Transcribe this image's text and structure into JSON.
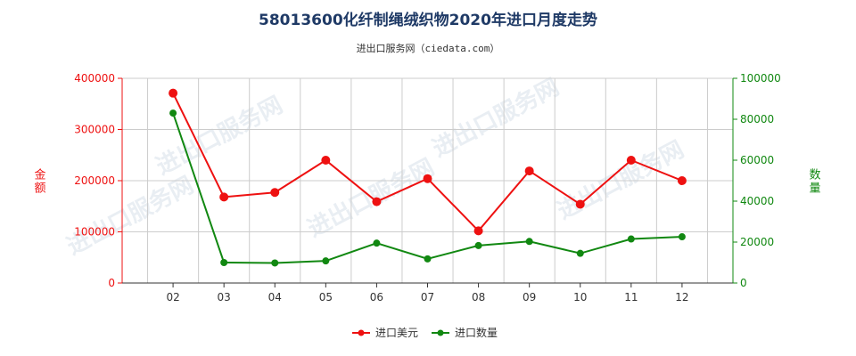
{
  "title": "58013600化纤制绳绒织物2020年进口月度走势",
  "subtitle": "进出口服务网（ciedata.com）",
  "watermark": "进出口服务网",
  "colors": {
    "usd": "#ee1111",
    "qty": "#118811",
    "grid": "#cccccc",
    "axis": "#333333"
  },
  "chart_data": {
    "type": "line",
    "title": "58013600化纤制绳绒织物2020年进口月度走势",
    "categories": [
      "02",
      "03",
      "04",
      "05",
      "06",
      "07",
      "08",
      "09",
      "10",
      "11",
      "12"
    ],
    "y_left": {
      "label": "金额",
      "ylim": [
        0,
        400000
      ],
      "ticks": [
        0,
        100000,
        200000,
        300000,
        400000
      ]
    },
    "y_right": {
      "label": "数量",
      "ylim": [
        0,
        100000
      ],
      "ticks": [
        0,
        20000,
        40000,
        60000,
        80000,
        100000
      ]
    },
    "grid": true,
    "legend_position": "bottom-center",
    "series": [
      {
        "name": "进口美元",
        "axis": "left",
        "color": "#ee1111",
        "values": [
          371000,
          168000,
          177000,
          240000,
          159000,
          204000,
          102000,
          219000,
          154000,
          240000,
          200000
        ]
      },
      {
        "name": "进口数量",
        "axis": "right",
        "color": "#118811",
        "values": [
          83000,
          10000,
          9800,
          10800,
          19500,
          11800,
          18300,
          20300,
          14500,
          21500,
          22600
        ]
      }
    ]
  }
}
